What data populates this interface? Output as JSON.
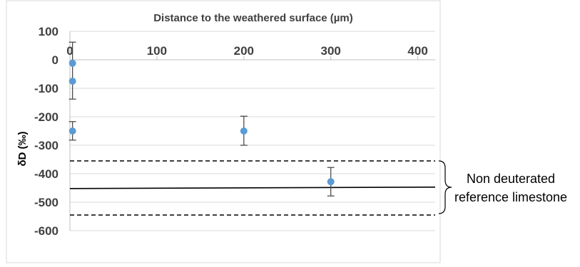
{
  "chart_data": {
    "type": "scatter",
    "title": "Distance to the weathered surface (µm)",
    "xlabel": "Distance to the weathered surface (µm)",
    "ylabel": "δD (‰)",
    "x_ticks": [
      "0",
      "100",
      "200",
      "300",
      "400"
    ],
    "y_ticks": [
      "100",
      "0",
      "-100",
      "-200",
      "-300",
      "-400",
      "-500",
      "-600"
    ],
    "xlim": [
      0,
      420
    ],
    "ylim": [
      -600,
      100
    ],
    "x_axis_position": "top",
    "grid": true,
    "series": [
      {
        "x": [
          3,
          3,
          3,
          200,
          300
        ],
        "y": [
          -12,
          -75,
          -250,
          -250,
          -428
        ],
        "error_low": [
          null,
          -138,
          -282,
          -300,
          -478
        ],
        "error_high": [
          null,
          62,
          -217,
          -198,
          -378
        ],
        "color": "#5b9bd5"
      }
    ],
    "reference_lines": [
      {
        "style": "solid",
        "y_start": -452,
        "y_end": -447
      },
      {
        "style": "dashed",
        "y": -355
      },
      {
        "style": "dashed",
        "y": -545
      }
    ],
    "annotation": {
      "line1": "Non deuterated",
      "line2": "reference limestone"
    }
  }
}
